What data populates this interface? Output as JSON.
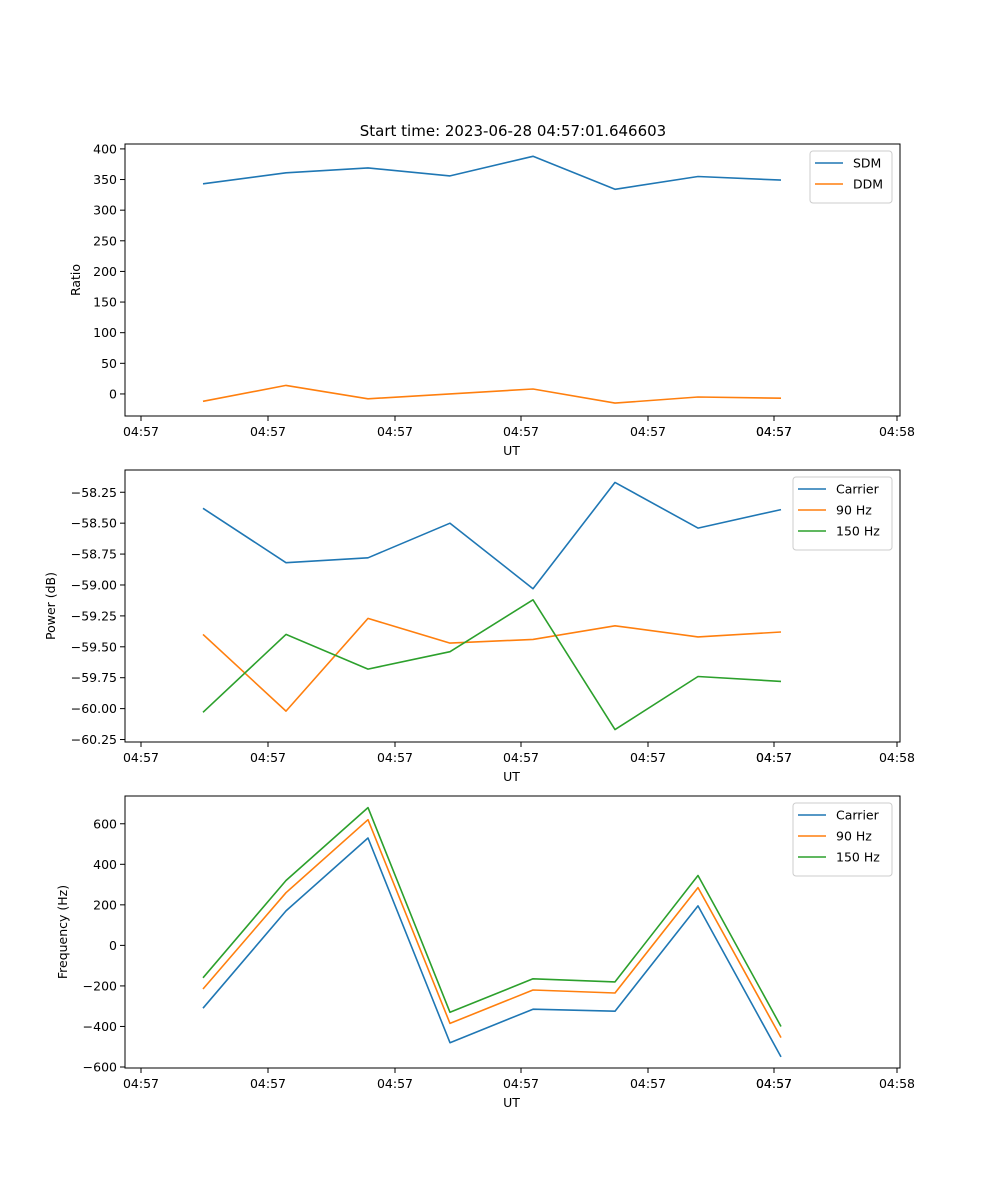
{
  "figure": {
    "title": "Start time: 2023-06-28 04:57:01.646603"
  },
  "chart_data": [
    {
      "type": "line",
      "xlabel": "UT",
      "ylabel": "Ratio",
      "x_tick_labels": [
        "04:57",
        "04:57",
        "04:57",
        "04:57",
        "04:57",
        "04:57",
        "04:57",
        "04:58"
      ],
      "x_index_range": [
        -0.46,
        5.62
      ],
      "x": [
        0,
        1,
        2,
        3,
        4,
        5,
        6,
        7
      ],
      "ylim": [
        -36,
        408
      ],
      "yticks": [
        0,
        50,
        100,
        150,
        200,
        250,
        300,
        350,
        400
      ],
      "grid": false,
      "legend_position": "upper right",
      "series": [
        {
          "name": "SDM",
          "color": "#1f77b4",
          "values": [
            343,
            361,
            369,
            356,
            388,
            334,
            355,
            349
          ]
        },
        {
          "name": "DDM",
          "color": "#ff7f0e",
          "values": [
            -12,
            14,
            -8,
            0,
            8,
            -15,
            -5,
            -7
          ]
        }
      ]
    },
    {
      "type": "line",
      "xlabel": "UT",
      "ylabel": "Power (dB)",
      "x_tick_labels": [
        "04:57",
        "04:57",
        "04:57",
        "04:57",
        "04:57",
        "04:57",
        "04:57",
        "04:58"
      ],
      "x_index_range": [
        -0.46,
        5.62
      ],
      "x": [
        0,
        1,
        2,
        3,
        4,
        5,
        6,
        7
      ],
      "ylim": [
        -60.27,
        -58.07
      ],
      "yticks": [
        -60.25,
        -60.0,
        -59.75,
        -59.5,
        -59.25,
        -59.0,
        -58.75,
        -58.5,
        -58.25
      ],
      "ytick_labels": [
        "−60.25",
        "−60.00",
        "−59.75",
        "−59.50",
        "−59.25",
        "−59.00",
        "−58.75",
        "−58.50",
        "−58.25"
      ],
      "grid": false,
      "legend_position": "upper right",
      "series": [
        {
          "name": "Carrier",
          "color": "#1f77b4",
          "values": [
            -58.38,
            -58.82,
            -58.78,
            -58.5,
            -59.03,
            -58.17,
            -58.54,
            -58.39
          ]
        },
        {
          "name": "90 Hz",
          "color": "#ff7f0e",
          "values": [
            -59.4,
            -60.02,
            -59.27,
            -59.47,
            -59.44,
            -59.33,
            -59.42,
            -59.38
          ]
        },
        {
          "name": "150 Hz",
          "color": "#2ca02c",
          "values": [
            -60.03,
            -59.4,
            -59.68,
            -59.54,
            -59.12,
            -60.17,
            -59.74,
            -59.78
          ]
        }
      ]
    },
    {
      "type": "line",
      "xlabel": "UT",
      "ylabel": "Frequency (Hz)",
      "x_tick_labels": [
        "04:57",
        "04:57",
        "04:57",
        "04:57",
        "04:57",
        "04:57",
        "04:57",
        "04:58"
      ],
      "x_index_range": [
        -0.46,
        5.62
      ],
      "x": [
        0,
        1,
        2,
        3,
        4,
        5,
        6,
        7
      ],
      "ylim": [
        -605,
        737
      ],
      "yticks": [
        -600,
        -400,
        -200,
        0,
        200,
        400,
        600
      ],
      "ytick_labels": [
        "−600",
        "−400",
        "−200",
        "0",
        "200",
        "400",
        "600"
      ],
      "grid": false,
      "legend_position": "upper right",
      "series": [
        {
          "name": "Carrier",
          "color": "#1f77b4",
          "values": [
            -310,
            170,
            530,
            -480,
            -315,
            -325,
            195,
            -550
          ]
        },
        {
          "name": "90 Hz",
          "color": "#ff7f0e",
          "values": [
            -215,
            260,
            620,
            -385,
            -220,
            -235,
            285,
            -455
          ]
        },
        {
          "name": "150 Hz",
          "color": "#2ca02c",
          "values": [
            -160,
            320,
            680,
            -330,
            -165,
            -180,
            345,
            -400
          ]
        }
      ]
    }
  ]
}
